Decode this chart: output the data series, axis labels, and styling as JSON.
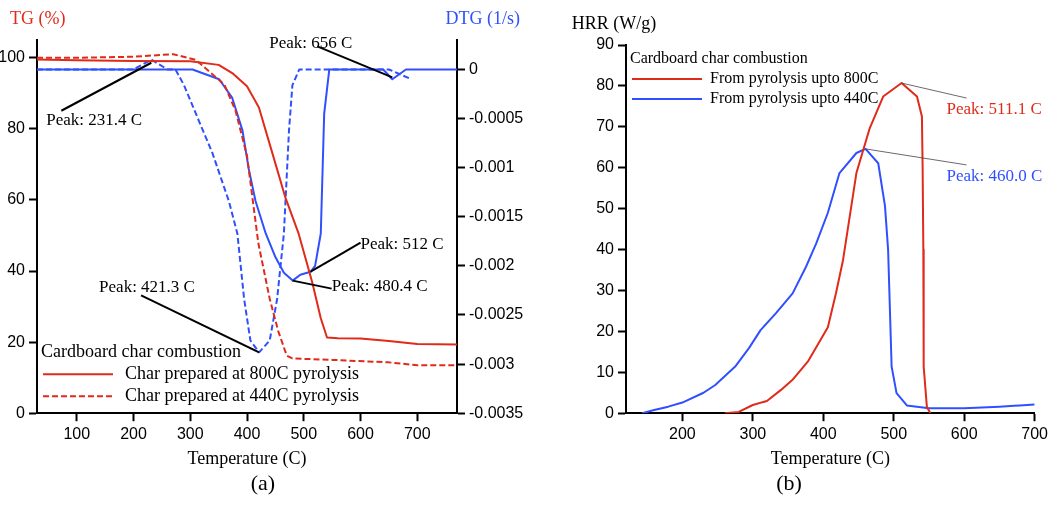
{
  "chart_data": [
    {
      "type": "line",
      "xlabel": "Temperature (C)",
      "ylabel": "TG (%)",
      "y2label": "DTG (1/s)",
      "legend_title": "Cardboard char combustion",
      "legend": "bottom left",
      "xlim": [
        30,
        770
      ],
      "xticks": [
        100,
        200,
        300,
        400,
        500,
        600,
        700
      ],
      "ylim": [
        0,
        105
      ],
      "yticks": [
        0,
        20,
        40,
        60,
        80,
        100
      ],
      "y2lim": [
        -0.0035,
        0.0003
      ],
      "y2ticks": [
        -0.0035,
        -0.003,
        -0.0025,
        -0.002,
        -0.0015,
        -0.001,
        -0.0005,
        0
      ],
      "grid": false,
      "series": [
        {
          "name": "Char prepared at 800C pyrolysis",
          "color": "#e02a1a",
          "line_style": "solid",
          "x": [
            30,
            100,
            200,
            300,
            350,
            374,
            400,
            421,
            440,
            468,
            491,
            515,
            530,
            541,
            560,
            600,
            650,
            700,
            770
          ],
          "values": [
            99.5,
            99.3,
            99.1,
            99,
            98,
            95.7,
            92,
            86,
            75.7,
            60.5,
            50.5,
            36.8,
            26.7,
            21.3,
            21.1,
            21,
            20.3,
            19.5,
            19.3
          ]
        },
        {
          "name": "Char prepared at 440C pyrolysis",
          "color": "#e02a1a",
          "line_style": "dashed",
          "x": [
            30,
            100,
            200,
            270,
            310,
            330,
            360,
            380,
            400,
            420,
            440,
            455,
            470,
            480,
            550,
            650,
            700,
            770
          ],
          "values": [
            100,
            100,
            100.3,
            101,
            99.4,
            96.6,
            92.5,
            85,
            72.4,
            47.8,
            32.2,
            23.1,
            16.2,
            15.4,
            15,
            14.3,
            13.5,
            13.5
          ]
        },
        {
          "color": "#3050ff",
          "line_style": "solid",
          "axis": "y2",
          "x": [
            30,
            100,
            250,
            304,
            351,
            374,
            392,
            403,
            415,
            433,
            450,
            465,
            480.4,
            494,
            512,
            520,
            530,
            536,
            545,
            560,
            600,
            640,
            656,
            680,
            700,
            770
          ],
          "values": [
            0,
            0,
            0,
            0,
            -0.0001,
            -0.00029,
            -0.00062,
            -0.00101,
            -0.00134,
            -0.00167,
            -0.00191,
            -0.00207,
            -0.00215,
            -0.00209,
            -0.00206,
            -0.002,
            -0.00167,
            -0.00045,
            0,
            0,
            0,
            0,
            -0.0001,
            0,
            0,
            0
          ]
        },
        {
          "color": "#3050ff",
          "line_style": "dashed",
          "axis": "y2",
          "x": [
            30,
            150,
            200,
            231.4,
            260,
            274,
            289,
            315,
            339,
            368,
            383,
            395,
            406,
            421.3,
            440,
            453,
            465,
            474,
            480,
            492,
            520,
            600,
            650,
            690
          ],
          "values": [
            0,
            0,
            0,
            0.0001,
            0,
            0,
            -0.00016,
            -0.00052,
            -0.00085,
            -0.00134,
            -0.00167,
            -0.00234,
            -0.00276,
            -0.00288,
            -0.00276,
            -0.00234,
            -0.00167,
            -0.00062,
            -0.00016,
            0,
            0,
            0,
            0,
            -0.0001
          ]
        }
      ],
      "annotations": [
        {
          "text": "Peak: 231.4 C",
          "x": 231.4,
          "y": 98.6
        },
        {
          "text": "Peak: 656 C",
          "x": 656,
          "y": 94.5
        },
        {
          "text": "Peak: 512 C",
          "x": 512,
          "y": 39.8
        },
        {
          "text": "Peak: 480.4 C",
          "x": 480.4,
          "y": 37.3
        },
        {
          "text": "Peak: 421.3 C",
          "x": 421.3,
          "y": 17.1
        },
        "(a)"
      ]
    },
    {
      "type": "line",
      "xlabel": "Temperature (C)",
      "ylabel": "HRR (W/g)",
      "legend_title": "Cardboard char combustion",
      "legend": "top left",
      "xlim": [
        120,
        700
      ],
      "xticks": [
        200,
        300,
        400,
        500,
        600,
        700
      ],
      "ylim": [
        0,
        90
      ],
      "yticks": [
        0,
        10,
        20,
        30,
        40,
        50,
        60,
        70,
        80,
        90
      ],
      "grid": false,
      "series": [
        {
          "name": "From pyrolysis upto 800C",
          "color": "#e02a1a",
          "x": [
            260,
            280,
            300,
            320,
            340,
            356,
            378,
            396,
            406.5,
            418,
            428,
            447,
            466,
            485,
            511.1,
            533,
            540,
            541,
            542,
            542.5,
            547,
            552
          ],
          "values": [
            0,
            0.3,
            2,
            3,
            5.7,
            8.1,
            12.6,
            17.9,
            21,
            29.3,
            37.4,
            58.7,
            69.7,
            77.4,
            80.7,
            77.4,
            72.5,
            60,
            40,
            11.4,
            1.6,
            0
          ]
        },
        {
          "name": "From pyrolysis upto 440C",
          "color": "#3050ff",
          "x": [
            142.8,
            160,
            180,
            200,
            230,
            246.7,
            275,
            294.5,
            311,
            332.6,
            356.5,
            375.5,
            390,
            406.5,
            423,
            447,
            460,
            478,
            487.6,
            492,
            497,
            504,
            518.6,
            550,
            600,
            650,
            700
          ],
          "values": [
            0,
            0.8,
            1.6,
            2.6,
            5,
            6.9,
            11.4,
            15.9,
            20.3,
            24.4,
            29.3,
            35.8,
            41.5,
            49,
            58.7,
            63.6,
            64.6,
            61.1,
            50.6,
            40,
            11.4,
            4.9,
            1.9,
            1.2,
            1.2,
            1.6,
            2.1
          ]
        }
      ],
      "annotations": [
        {
          "text": "Peak: 511.1 C",
          "x": 511.1,
          "y": 80.7
        },
        {
          "text": "Peak: 460.0 C",
          "x": 460,
          "y": 64.6
        },
        "(b)"
      ]
    }
  ]
}
